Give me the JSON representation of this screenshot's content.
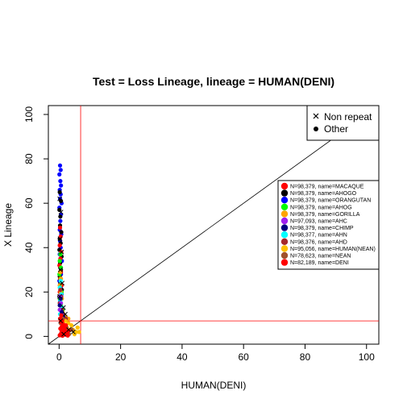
{
  "chart_data": {
    "type": "scatter",
    "title": "Test = Loss Lineage, lineage = HUMAN(DENI)",
    "xlabel": "HUMAN(DENI)",
    "ylabel": "X Lineage",
    "xlim": [
      -3.5,
      104
    ],
    "ylim": [
      -3.5,
      104
    ],
    "xticks": [
      "0",
      "20",
      "40",
      "60",
      "80",
      "100"
    ],
    "yticks": [
      "0",
      "20",
      "40",
      "60",
      "80",
      "100"
    ],
    "reference_lines": {
      "diagonal": "y = x",
      "vertical_x": 7,
      "horizontal_y": 7,
      "threshold_color": "#ff0000"
    },
    "marker_legend": {
      "placement": "top-right",
      "items": [
        {
          "label": "Non repeat",
          "marker": "cross"
        },
        {
          "label": "Other",
          "marker": "dot"
        }
      ]
    },
    "series_legend": {
      "placement": "right",
      "items": [
        {
          "label": "N=98,379, name=MACAQUE",
          "color": "#ff0000"
        },
        {
          "label": "N=98,379, name=AHOGO",
          "color": "#000000"
        },
        {
          "label": "N=98,379, name=ORANGUTAN",
          "color": "#0000ff"
        },
        {
          "label": "N=98,379, name=AHOG",
          "color": "#00ff00"
        },
        {
          "label": "N=98,379, name=GORILLA",
          "color": "#ffa500"
        },
        {
          "label": "N=97,093, name=AHC",
          "color": "#a020f0"
        },
        {
          "label": "N=98,379, name=CHIMP",
          "color": "#000080"
        },
        {
          "label": "N=98,377, name=AHN",
          "color": "#00ffff"
        },
        {
          "label": "N=98,376, name=AHD",
          "color": "#a52a2a"
        },
        {
          "label": "N=95,056, name=HUMAN(NEAN)",
          "color": "#ffc000"
        },
        {
          "label": "N=78,623, name=NEAN",
          "color": "#a0522d"
        },
        {
          "label": "N=82,189, name=DENI",
          "color": "#ff0000"
        }
      ]
    },
    "series": [
      {
        "color": "#0000ff",
        "points": [
          [
            0.3,
            77
          ],
          [
            0.5,
            75
          ],
          [
            0.1,
            73
          ],
          [
            0.4,
            70
          ],
          [
            0.6,
            68
          ],
          [
            0.2,
            66
          ],
          [
            0.5,
            64
          ],
          [
            0.3,
            62
          ],
          [
            0.8,
            60
          ],
          [
            0.1,
            58
          ],
          [
            0.6,
            55
          ],
          [
            0.4,
            52
          ],
          [
            0.2,
            48
          ],
          [
            0.7,
            46
          ],
          [
            0.3,
            43
          ],
          [
            0.5,
            40
          ],
          [
            0.2,
            37
          ],
          [
            0.9,
            34
          ],
          [
            0.4,
            31
          ],
          [
            0.6,
            28
          ],
          [
            0.1,
            25
          ],
          [
            0.5,
            22
          ],
          [
            0.8,
            19
          ],
          [
            0.3,
            16
          ]
        ]
      },
      {
        "color": "#000000",
        "points": [
          [
            0.2,
            65
          ],
          [
            0.6,
            61
          ],
          [
            0.1,
            57
          ],
          [
            0.4,
            54
          ],
          [
            0.3,
            50
          ],
          [
            0.7,
            47
          ],
          [
            0.2,
            44
          ],
          [
            0.5,
            42
          ],
          [
            0.1,
            39
          ],
          [
            0.8,
            36
          ],
          [
            0.3,
            33
          ],
          [
            0.6,
            30
          ],
          [
            0.2,
            27
          ],
          [
            0.4,
            24
          ],
          [
            0.9,
            21
          ],
          [
            0.1,
            18
          ],
          [
            0.5,
            15
          ],
          [
            0.3,
            12
          ]
        ]
      },
      {
        "color": "#ff0000",
        "points": [
          [
            0.3,
            49
          ],
          [
            0.5,
            45
          ],
          [
            0.2,
            41
          ],
          [
            0.7,
            38
          ],
          [
            0.4,
            35
          ],
          [
            0.1,
            32
          ],
          [
            0.6,
            29
          ],
          [
            0.3,
            26
          ],
          [
            0.8,
            23
          ],
          [
            0.2,
            20
          ],
          [
            0.5,
            17
          ],
          [
            0.4,
            14
          ],
          [
            1.0,
            11
          ]
        ]
      },
      {
        "color": "#00ff00",
        "points": [
          [
            0.4,
            37
          ],
          [
            0.2,
            34
          ],
          [
            0.6,
            31
          ],
          [
            0.1,
            28
          ],
          [
            0.5,
            26
          ],
          [
            0.3,
            23
          ],
          [
            0.8,
            20
          ],
          [
            0.2,
            17
          ],
          [
            0.6,
            14
          ],
          [
            1.2,
            12
          ]
        ]
      },
      {
        "color": "#ffa500",
        "points": [
          [
            0.3,
            29
          ],
          [
            0.6,
            26
          ],
          [
            0.2,
            23
          ],
          [
            0.5,
            20
          ],
          [
            0.9,
            17
          ],
          [
            0.3,
            14
          ],
          [
            1.1,
            11
          ],
          [
            2.0,
            9
          ],
          [
            3.0,
            8
          ]
        ]
      },
      {
        "color": "#00ffff",
        "points": [
          [
            0.5,
            25
          ],
          [
            0.2,
            22
          ],
          [
            0.7,
            19
          ],
          [
            0.4,
            16
          ],
          [
            1.0,
            13
          ],
          [
            0.3,
            10
          ]
        ]
      },
      {
        "color": "#a52a2a",
        "points": [
          [
            0.4,
            21
          ],
          [
            0.7,
            18
          ],
          [
            0.2,
            15
          ],
          [
            0.9,
            12
          ],
          [
            1.4,
            10
          ],
          [
            2.2,
            8
          ]
        ]
      },
      {
        "color": "#a020f0",
        "points": [
          [
            0.3,
            18
          ],
          [
            0.6,
            15
          ],
          [
            0.2,
            12
          ],
          [
            0.8,
            10
          ]
        ]
      },
      {
        "color": "#000080",
        "points": [
          [
            0.5,
            17
          ],
          [
            0.2,
            14
          ],
          [
            0.9,
            11
          ],
          [
            1.3,
            9
          ]
        ]
      },
      {
        "color": "#ffc000",
        "points": [
          [
            1.5,
            5
          ],
          [
            2.5,
            4
          ],
          [
            3.5,
            3
          ],
          [
            4.5,
            3
          ],
          [
            5.5,
            2
          ],
          [
            6.0,
            4
          ],
          [
            3.0,
            6
          ],
          [
            2.0,
            7
          ],
          [
            4.0,
            5
          ],
          [
            5.0,
            1
          ],
          [
            6.5,
            2
          ],
          [
            1.0,
            6
          ]
        ]
      },
      {
        "color": "#a0522d",
        "points": [
          [
            0.8,
            3
          ],
          [
            1.6,
            2
          ],
          [
            2.4,
            4
          ],
          [
            3.2,
            1
          ],
          [
            4.1,
            3
          ],
          [
            0.5,
            6
          ],
          [
            1.2,
            8
          ]
        ]
      },
      {
        "color": "#ff0000",
        "points": [
          [
            0.2,
            0.5
          ],
          [
            0.5,
            1
          ],
          [
            0.8,
            2
          ],
          [
            1.1,
            0.3
          ],
          [
            1.4,
            1.5
          ],
          [
            1.7,
            3
          ],
          [
            2.0,
            0.8
          ],
          [
            2.3,
            2.2
          ],
          [
            2.6,
            1.2
          ],
          [
            0.4,
            3.5
          ],
          [
            0.9,
            4.5
          ],
          [
            1.3,
            5.5
          ],
          [
            0.6,
            6.5
          ],
          [
            1.9,
            4
          ],
          [
            2.8,
            0.4
          ],
          [
            3.1,
            2.6
          ],
          [
            0.3,
            8
          ],
          [
            0.7,
            9.5
          ],
          [
            1.0,
            7
          ],
          [
            2.2,
            5
          ]
        ]
      }
    ],
    "cross_points": [
      [
        0.2,
        62
      ],
      [
        0.6,
        56
      ],
      [
        0.3,
        44
      ],
      [
        0.8,
        38
      ],
      [
        0.4,
        30
      ],
      [
        1.0,
        24
      ],
      [
        0.2,
        18
      ],
      [
        1.4,
        13
      ],
      [
        2.0,
        10
      ],
      [
        0.5,
        7
      ],
      [
        3.1,
        3
      ],
      [
        4.6,
        2
      ],
      [
        1.5,
        1
      ]
    ]
  }
}
